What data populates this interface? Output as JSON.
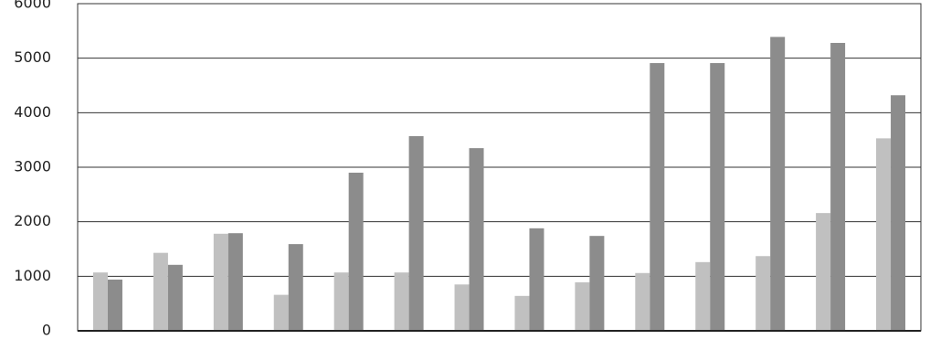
{
  "chart_data": {
    "type": "bar",
    "categories": [
      null,
      null,
      null,
      null,
      null,
      null,
      null,
      null,
      null,
      null,
      null,
      null,
      null,
      null
    ],
    "series": [
      {
        "color": "#c0c0c0",
        "values": [
          1070,
          1430,
          1780,
          660,
          1070,
          1070,
          850,
          640,
          890,
          1060,
          1260,
          1370,
          2160,
          3530
        ]
      },
      {
        "color": "#8c8c8c",
        "values": [
          940,
          1210,
          1790,
          1590,
          2900,
          3570,
          3350,
          1880,
          1740,
          4910,
          4910,
          5390,
          5280,
          4320
        ]
      }
    ],
    "ylim": [
      0,
      6000
    ],
    "yticks": [
      0,
      1000,
      2000,
      3000,
      4000,
      5000,
      6000
    ],
    "grid": true
  }
}
